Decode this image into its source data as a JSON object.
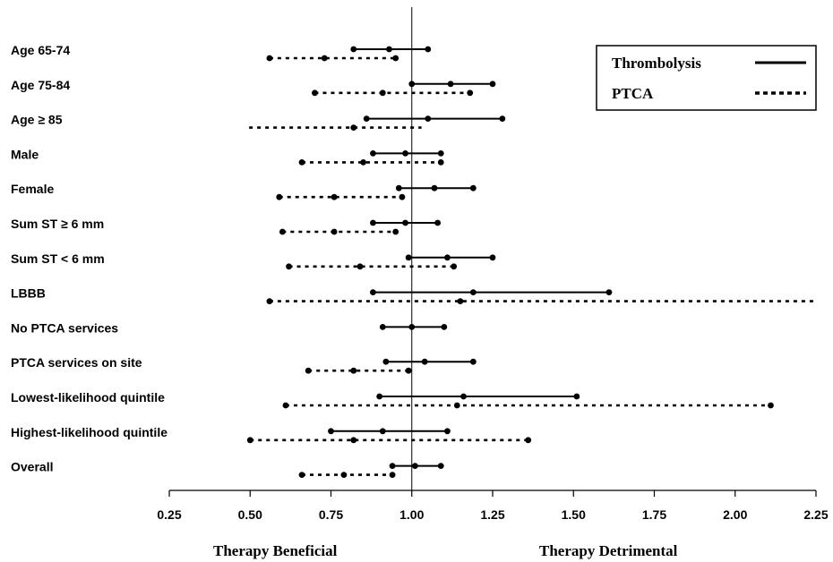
{
  "chart_data": {
    "type": "forest",
    "xlim": [
      0.25,
      2.25
    ],
    "x_ticks": [
      "0.25",
      "0.50",
      "0.75",
      "1.00",
      "1.25",
      "1.50",
      "1.75",
      "2.00",
      "2.25"
    ],
    "x_tick_values": [
      0.25,
      0.5,
      0.75,
      1.0,
      1.25,
      1.5,
      1.75,
      2.0,
      2.25
    ],
    "reference_line": 1.0,
    "xlabel_left": "Therapy Beneficial",
    "xlabel_right": "Therapy Detrimental",
    "legend": {
      "placement": "top-right",
      "entries": [
        {
          "name": "Thrombolysis",
          "style": "solid"
        },
        {
          "name": "PTCA",
          "style": "dotted"
        }
      ]
    },
    "categories": [
      "Age 65-74",
      "Age 75-84",
      "Age ≥ 85",
      "Male",
      "Female",
      "Sum ST ≥ 6 mm",
      "Sum ST < 6 mm",
      "LBBB",
      "No PTCA services",
      "PTCA services on site",
      "Lowest-likelihood quintile",
      "Highest-likelihood quintile",
      "Overall"
    ],
    "series": [
      {
        "name": "Thrombolysis",
        "style": "solid",
        "low": [
          0.82,
          1.0,
          0.86,
          0.88,
          0.96,
          0.88,
          0.99,
          0.88,
          0.91,
          0.92,
          0.9,
          0.75,
          0.94
        ],
        "point": [
          0.93,
          1.12,
          1.05,
          0.98,
          1.07,
          0.98,
          1.11,
          1.19,
          1.0,
          1.04,
          1.16,
          0.91,
          1.01
        ],
        "high": [
          1.05,
          1.25,
          1.28,
          1.09,
          1.19,
          1.08,
          1.25,
          1.61,
          1.1,
          1.19,
          1.51,
          1.11,
          1.09
        ]
      },
      {
        "name": "PTCA",
        "style": "dotted",
        "low": [
          0.56,
          0.7,
          0.58,
          0.66,
          0.59,
          0.6,
          0.62,
          0.56,
          null,
          0.68,
          0.61,
          0.5,
          0.66
        ],
        "point": [
          0.73,
          0.91,
          0.82,
          0.85,
          0.76,
          0.76,
          0.84,
          1.15,
          null,
          0.82,
          1.14,
          0.82,
          0.79
        ],
        "high": [
          0.95,
          1.18,
          1.03,
          1.09,
          0.97,
          0.95,
          1.13,
          2.25,
          null,
          0.99,
          2.11,
          1.36,
          0.94
        ],
        "open_high": [
          false,
          false,
          true,
          false,
          false,
          false,
          false,
          true,
          false,
          false,
          false,
          false,
          false
        ],
        "open_low": [
          false,
          false,
          true,
          false,
          false,
          false,
          false,
          false,
          false,
          false,
          false,
          false,
          false
        ]
      }
    ]
  }
}
